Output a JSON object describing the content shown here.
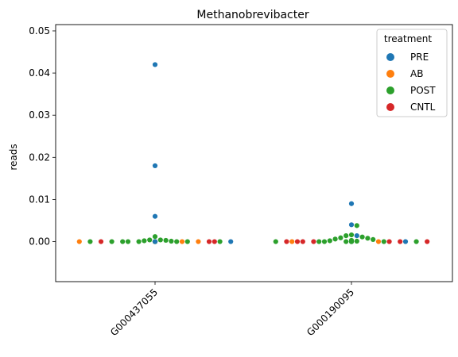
{
  "chart_data": {
    "type": "scatter",
    "subtype": "swarm",
    "title": "Methanobrevibacter",
    "xlabel": "",
    "ylabel": "reads",
    "categories": [
      "G000437055",
      "G000190095"
    ],
    "ylim": [
      -0.0095,
      0.0515
    ],
    "yticks": [
      0.0,
      0.01,
      0.02,
      0.03,
      0.04,
      0.05
    ],
    "ytick_labels": [
      "0.00",
      "0.01",
      "0.02",
      "0.03",
      "0.04",
      "0.05"
    ],
    "grid": false,
    "legend": {
      "title": "treatment",
      "placement": "top-right",
      "entries": [
        {
          "label": "PRE",
          "color": "#1f77b4"
        },
        {
          "label": "AB",
          "color": "#ff7f0e"
        },
        {
          "label": "POST",
          "color": "#2ca02c"
        },
        {
          "label": "CNTL",
          "color": "#d62728"
        }
      ]
    },
    "series": [
      {
        "category": "G000437055",
        "points": [
          {
            "group": "PRE",
            "y": 0.042
          },
          {
            "group": "PRE",
            "y": 0.018
          },
          {
            "group": "PRE",
            "y": 0.006
          },
          {
            "group": "POST",
            "y": 0.0012
          },
          {
            "group": "POST",
            "y": 0.0004
          },
          {
            "group": "POST",
            "y": 0.0004
          },
          {
            "group": "POST",
            "y": 0.0003
          },
          {
            "group": "POST",
            "y": 0.0002
          },
          {
            "group": "POST",
            "y": 0.0001
          },
          {
            "group": "POST",
            "y": 0.0
          },
          {
            "group": "POST",
            "y": 0.0
          },
          {
            "group": "AB",
            "y": 0.0
          },
          {
            "group": "POST",
            "y": 0.0
          },
          {
            "group": "POST",
            "y": 0.0
          },
          {
            "group": "POST",
            "y": 0.0
          },
          {
            "group": "AB",
            "y": 0.0
          },
          {
            "group": "POST",
            "y": 0.0
          },
          {
            "group": "CNTL",
            "y": 0.0
          },
          {
            "group": "CNTL",
            "y": 0.0
          },
          {
            "group": "CNTL",
            "y": 0.0
          },
          {
            "group": "POST",
            "y": 0.0
          },
          {
            "group": "POST",
            "y": 0.0
          },
          {
            "group": "PRE",
            "y": 0.0
          },
          {
            "group": "AB",
            "y": 0.0
          },
          {
            "group": "AB",
            "y": 0.0
          },
          {
            "group": "POST",
            "y": 0.0
          },
          {
            "group": "POST",
            "y": 0.0
          },
          {
            "group": "PRE",
            "y": 0.0
          },
          {
            "group": "POST",
            "y": 0.0
          },
          {
            "group": "PRE",
            "y": 0.0
          },
          {
            "group": "PRE",
            "y": 0.0
          },
          {
            "group": "POST",
            "y": 0.0
          },
          {
            "group": "AB",
            "y": 0.0
          },
          {
            "group": "POST",
            "y": 0.0
          },
          {
            "group": "PRE",
            "y": 0.0
          }
        ]
      },
      {
        "category": "G000190095",
        "points": [
          {
            "group": "PRE",
            "y": 0.009
          },
          {
            "group": "PRE",
            "y": 0.004
          },
          {
            "group": "POST",
            "y": 0.0038
          },
          {
            "group": "POST",
            "y": 0.0016
          },
          {
            "group": "PRE",
            "y": 0.0014
          },
          {
            "group": "POST",
            "y": 0.0014
          },
          {
            "group": "POST",
            "y": 0.0011
          },
          {
            "group": "POST",
            "y": 0.0009
          },
          {
            "group": "POST",
            "y": 0.0008
          },
          {
            "group": "POST",
            "y": 0.0006
          },
          {
            "group": "POST",
            "y": 0.0005
          },
          {
            "group": "POST",
            "y": 0.0003
          },
          {
            "group": "POST",
            "y": 0.0002
          },
          {
            "group": "POST",
            "y": 0.0001
          },
          {
            "group": "POST",
            "y": 0.0
          },
          {
            "group": "AB",
            "y": 0.0
          },
          {
            "group": "POST",
            "y": 0.0
          },
          {
            "group": "POST",
            "y": 0.0
          },
          {
            "group": "POST",
            "y": 0.0
          },
          {
            "group": "CNTL",
            "y": 0.0
          },
          {
            "group": "CNTL",
            "y": 0.0
          },
          {
            "group": "CNTL",
            "y": 0.0
          },
          {
            "group": "CNTL",
            "y": 0.0
          },
          {
            "group": "PRE",
            "y": 0.0
          },
          {
            "group": "CNTL",
            "y": 0.0
          },
          {
            "group": "AB",
            "y": 0.0
          },
          {
            "group": "POST",
            "y": 0.0
          },
          {
            "group": "CNTL",
            "y": 0.0
          },
          {
            "group": "CNTL",
            "y": 0.0
          },
          {
            "group": "POST",
            "y": 0.0
          },
          {
            "group": "PRE",
            "y": 0.0
          },
          {
            "group": "POST",
            "y": 0.0
          },
          {
            "group": "PRE",
            "y": 0.0
          },
          {
            "group": "POST",
            "y": 0.0
          },
          {
            "group": "POST",
            "y": 0.0
          }
        ]
      }
    ]
  }
}
